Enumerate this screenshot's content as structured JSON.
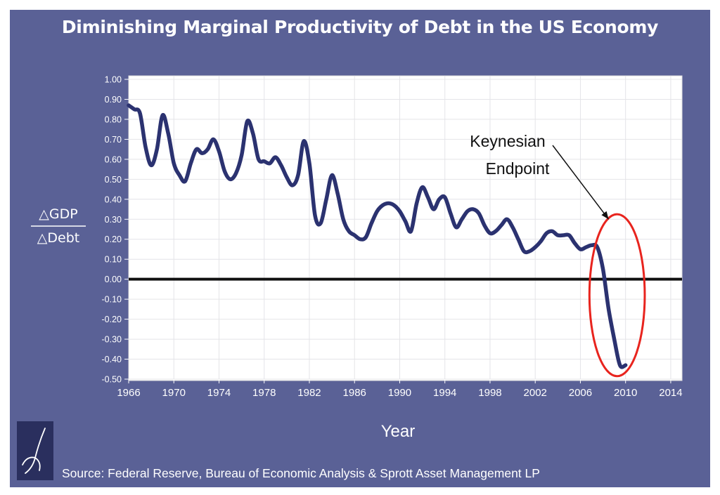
{
  "title": "Diminishing Marginal Productivity of Debt in the US Economy",
  "source": "Source: Federal Reserve, Bureau of Economic Analysis & Sprott Asset Management LP",
  "colors": {
    "frame": "#5a6196",
    "plot_bg": "#ffffff",
    "line": "#2b3270",
    "zero_line": "#111111",
    "highlight": "#e8241e",
    "label": "#ffffff"
  },
  "chart_data": {
    "type": "line",
    "title": "Diminishing Marginal Productivity of Debt in the US Economy",
    "xlabel": "Year",
    "ylabel_numerator": "△GDP",
    "ylabel_denominator": "△Debt",
    "xlim": [
      1966,
      2015
    ],
    "ylim": [
      -0.5,
      1.0
    ],
    "xticks": [
      "1966",
      "1970",
      "1974",
      "1978",
      "1982",
      "1986",
      "1990",
      "1994",
      "1998",
      "2002",
      "2006",
      "2010",
      "2014"
    ],
    "yticks": [
      "1.00",
      "0.90",
      "0.80",
      "0.70",
      "0.60",
      "0.50",
      "0.40",
      "0.30",
      "0.20",
      "0.10",
      "0.00",
      "-0.10",
      "-0.20",
      "-0.30",
      "-0.40",
      "-0.50"
    ],
    "grid": true,
    "series": [
      {
        "x": [
          1966.0,
          1966.5,
          1967.0,
          1967.5,
          1968.0,
          1968.5,
          1969.0,
          1969.5,
          1970.0,
          1970.5,
          1971.0,
          1971.5,
          1972.0,
          1972.5,
          1973.0,
          1973.5,
          1974.0,
          1974.5,
          1975.0,
          1975.5,
          1976.0,
          1976.5,
          1977.0,
          1977.5,
          1978.0,
          1978.5,
          1979.0,
          1979.5,
          1980.0,
          1980.5,
          1981.0,
          1981.5,
          1982.0,
          1982.5,
          1983.0,
          1983.5,
          1984.0,
          1984.5,
          1985.0,
          1985.5,
          1986.0,
          1986.5,
          1987.0,
          1987.5,
          1988.0,
          1988.5,
          1989.0,
          1989.5,
          1990.0,
          1990.5,
          1991.0,
          1991.5,
          1992.0,
          1992.5,
          1993.0,
          1993.5,
          1994.0,
          1994.5,
          1995.0,
          1995.5,
          1996.0,
          1996.5,
          1997.0,
          1997.5,
          1998.0,
          1998.5,
          1999.0,
          1999.5,
          2000.0,
          2000.5,
          2001.0,
          2001.5,
          2002.0,
          2002.5,
          2003.0,
          2003.5,
          2004.0,
          2004.5,
          2005.0,
          2005.5,
          2006.0,
          2006.5,
          2007.0,
          2007.5,
          2008.0,
          2008.5,
          2009.0,
          2009.5,
          2010.0
        ],
        "y": [
          0.87,
          0.85,
          0.83,
          0.66,
          0.57,
          0.65,
          0.82,
          0.73,
          0.58,
          0.52,
          0.49,
          0.58,
          0.65,
          0.63,
          0.65,
          0.7,
          0.64,
          0.54,
          0.5,
          0.53,
          0.62,
          0.79,
          0.73,
          0.6,
          0.59,
          0.58,
          0.61,
          0.57,
          0.51,
          0.47,
          0.52,
          0.69,
          0.58,
          0.32,
          0.28,
          0.4,
          0.52,
          0.43,
          0.3,
          0.24,
          0.22,
          0.2,
          0.21,
          0.28,
          0.34,
          0.37,
          0.38,
          0.37,
          0.34,
          0.29,
          0.24,
          0.38,
          0.46,
          0.41,
          0.35,
          0.4,
          0.41,
          0.33,
          0.26,
          0.3,
          0.34,
          0.35,
          0.33,
          0.27,
          0.23,
          0.24,
          0.27,
          0.3,
          0.26,
          0.2,
          0.14,
          0.14,
          0.16,
          0.19,
          0.23,
          0.24,
          0.22,
          0.22,
          0.22,
          0.18,
          0.15,
          0.16,
          0.17,
          0.16,
          0.05,
          -0.15,
          -0.3,
          -0.43,
          -0.43
        ]
      }
    ],
    "annotation": {
      "text_line1": "Keynesian",
      "text_line2": "Endpoint",
      "target_year": 2008.5,
      "target_value": 0.3
    }
  }
}
